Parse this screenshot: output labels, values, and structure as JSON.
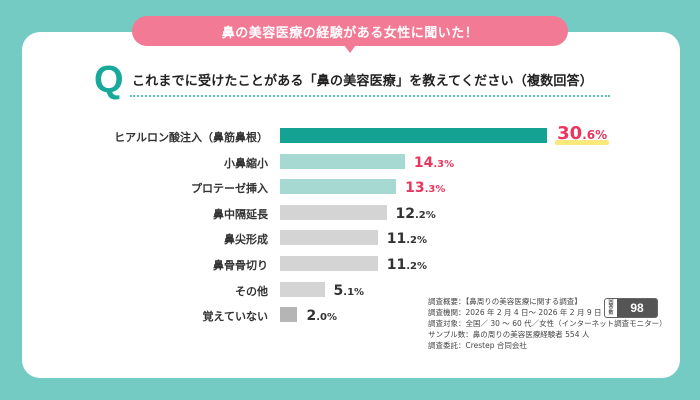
{
  "header": {
    "banner": "鼻の美容医療の経験がある女性に聞いた！",
    "q_mark": "Q",
    "question": "これまでに受けたことがある「鼻の美容医療」を教えてください（複数回答）"
  },
  "colors": {
    "background": "#74cbc4",
    "banner": "#f27a95",
    "q_mark": "#18a99a",
    "bar_top": "#14a393",
    "bar_light": "#a6d9d1",
    "bar_gray": "#d4d4d4",
    "bar_dark_gray": "#b5b5b5",
    "value_pink": "#e8365f",
    "value_dark": "#333333",
    "highlight": "#fbe97a"
  },
  "chart_data": {
    "type": "bar",
    "orientation": "horizontal",
    "title": "これまでに受けたことがある「鼻の美容医療」を教えてください（複数回答）",
    "xlabel": "",
    "ylabel": "",
    "unit": "%",
    "xlim": [
      0,
      35
    ],
    "grid": false,
    "categories": [
      "ヒアルロン酸注入（鼻筋鼻根）",
      "小鼻縮小",
      "プロテーゼ挿入",
      "鼻中隔延長",
      "鼻尖形成",
      "鼻骨骨切り",
      "その他",
      "覚えていない"
    ],
    "values": [
      30.6,
      14.3,
      13.3,
      12.2,
      11.2,
      11.2,
      5.1,
      2.0
    ],
    "value_labels": [
      {
        "int": "30",
        "dec": ".6%"
      },
      {
        "int": "14",
        "dec": ".3%"
      },
      {
        "int": "13",
        "dec": ".3%"
      },
      {
        "int": "12",
        "dec": ".2%"
      },
      {
        "int": "11",
        "dec": ".2%"
      },
      {
        "int": "11",
        "dec": ".2%"
      },
      {
        "int": "5",
        "dec": ".1%"
      },
      {
        "int": "2",
        "dec": ".0%"
      }
    ]
  },
  "survey": {
    "lines": [
      "調査概要：【鼻周りの美容医療に関する調査】",
      "調査機関：2026 年 2 月 4 日～ 2026 年 2 月 9 日",
      "調査対象：全国／ 30 ～ 60 代／女性（インターネット調査モニター）",
      "サンプル数：鼻の周りの美容医療経験者 554 人",
      "調査委託：Crestep 合同会社"
    ],
    "badge_label": "回答数",
    "badge_value": "98"
  }
}
